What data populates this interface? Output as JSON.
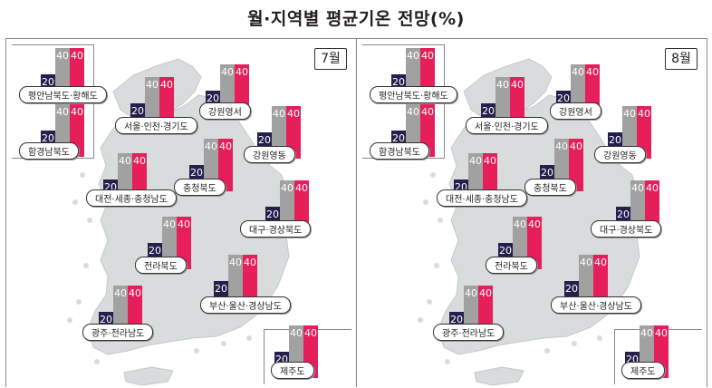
{
  "title": "월·지역별 평균기온 전망(%)",
  "colors": {
    "below": "#23204d",
    "normal": "#a1a1a1",
    "above": "#e61e5a",
    "map": "#d9dcdc"
  },
  "panels": [
    {
      "month": "7월",
      "regions": [
        {
          "name": "평안남북도·황해도",
          "below": 20,
          "normal": 40,
          "above": 40
        },
        {
          "name": "함경남북도",
          "below": 20,
          "normal": 40,
          "above": 40
        },
        {
          "name": "서울·인천·경기도",
          "below": 20,
          "normal": 40,
          "above": 40
        },
        {
          "name": "강원영서",
          "below": 20,
          "normal": 40,
          "above": 40
        },
        {
          "name": "강원영동",
          "below": 20,
          "normal": 40,
          "above": 40
        },
        {
          "name": "충청북도",
          "below": 20,
          "normal": 40,
          "above": 40
        },
        {
          "name": "대전·세종·충청남도",
          "below": 20,
          "normal": 40,
          "above": 40
        },
        {
          "name": "대구·경상북도",
          "below": 20,
          "normal": 40,
          "above": 40
        },
        {
          "name": "전라북도",
          "below": 20,
          "normal": 40,
          "above": 40
        },
        {
          "name": "부산·울산·경상남도",
          "below": 20,
          "normal": 40,
          "above": 40
        },
        {
          "name": "광주·전라남도",
          "below": 20,
          "normal": 40,
          "above": 40
        },
        {
          "name": "제주도",
          "below": 20,
          "normal": 40,
          "above": 40
        }
      ]
    },
    {
      "month": "8월",
      "regions": [
        {
          "name": "평안남북도·황해도",
          "below": 20,
          "normal": 40,
          "above": 40
        },
        {
          "name": "함경남북도",
          "below": 20,
          "normal": 40,
          "above": 40
        },
        {
          "name": "서울·인천·경기도",
          "below": 20,
          "normal": 40,
          "above": 40
        },
        {
          "name": "강원영서",
          "below": 20,
          "normal": 40,
          "above": 40
        },
        {
          "name": "강원영동",
          "below": 20,
          "normal": 40,
          "above": 40
        },
        {
          "name": "충청북도",
          "below": 20,
          "normal": 40,
          "above": 40
        },
        {
          "name": "대전·세종·충청남도",
          "below": 20,
          "normal": 40,
          "above": 40
        },
        {
          "name": "대구·경상북도",
          "below": 20,
          "normal": 40,
          "above": 40
        },
        {
          "name": "전라북도",
          "below": 20,
          "normal": 40,
          "above": 40
        },
        {
          "name": "부산·울산·경상남도",
          "below": 20,
          "normal": 40,
          "above": 40
        },
        {
          "name": "광주·전라남도",
          "below": 20,
          "normal": 40,
          "above": 40
        },
        {
          "name": "제주도",
          "below": 20,
          "normal": 40,
          "above": 40
        }
      ]
    }
  ]
}
